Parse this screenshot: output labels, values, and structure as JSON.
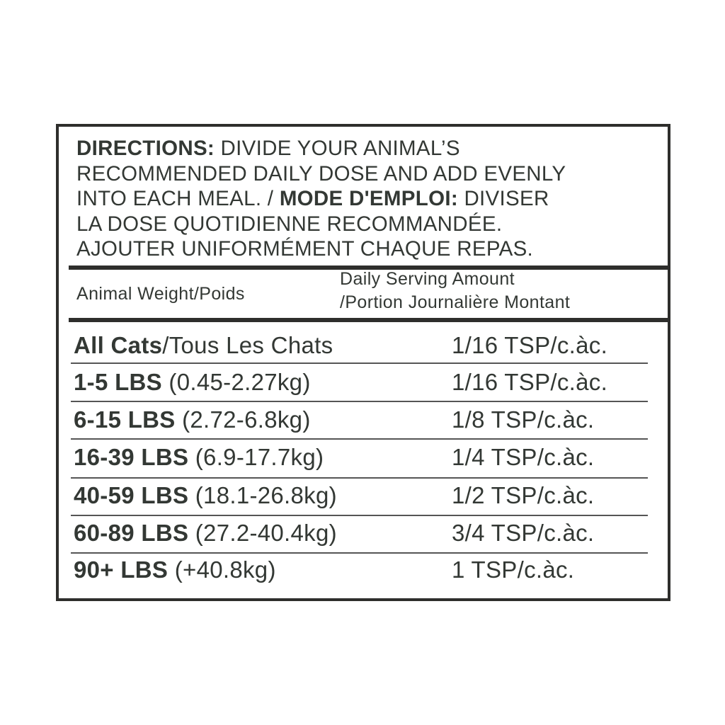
{
  "directions": {
    "lines": [
      {
        "bold": "DIRECTIONS:",
        "text": " DIVIDE YOUR ANIMAL’S",
        "bold2": "",
        "text2": ""
      },
      {
        "bold": "",
        "text": "RECOMMENDED DAILY DOSE AND ADD EVENLY",
        "bold2": "",
        "text2": ""
      },
      {
        "bold": "",
        "text": "INTO EACH MEAL. / ",
        "bold2": "MODE D'EMPLOI:",
        "text2": " DIVISER"
      },
      {
        "bold": "",
        "text": "LA DOSE QUOTIDIENNE RECOMMANDÉE.",
        "bold2": "",
        "text2": ""
      },
      {
        "bold": "",
        "text": "AJOUTER UNIFORMÉMENT CHAQUE REPAS.",
        "bold2": "",
        "text2": ""
      }
    ]
  },
  "table": {
    "header": {
      "weight": "Animal Weight/Poids",
      "amount_line1": "Daily Serving Amount",
      "amount_line2": "/Portion Journalière Montant"
    },
    "rows": [
      {
        "bold": "All Cats",
        "rest": "/Tous Les Chats",
        "amount": "1/16 TSP/c.àc."
      },
      {
        "bold": "1-5 LBS",
        "rest": " (0.45-2.27kg)",
        "amount": "1/16 TSP/c.àc."
      },
      {
        "bold": "6-15 LBS",
        "rest": " (2.72-6.8kg)",
        "amount": "1/8 TSP/c.àc."
      },
      {
        "bold": "16-39 LBS",
        "rest": " (6.9-17.7kg)",
        "amount": "1/4 TSP/c.àc."
      },
      {
        "bold": "40-59 LBS",
        "rest": " (18.1-26.8kg)",
        "amount": "1/2 TSP/c.àc."
      },
      {
        "bold": "60-89 LBS",
        "rest": " (27.2-40.4kg)",
        "amount": "3/4 TSP/c.àc."
      },
      {
        "bold": "90+ LBS",
        "rest": " (+40.8kg)",
        "amount": "1 TSP/c.àc."
      }
    ]
  }
}
